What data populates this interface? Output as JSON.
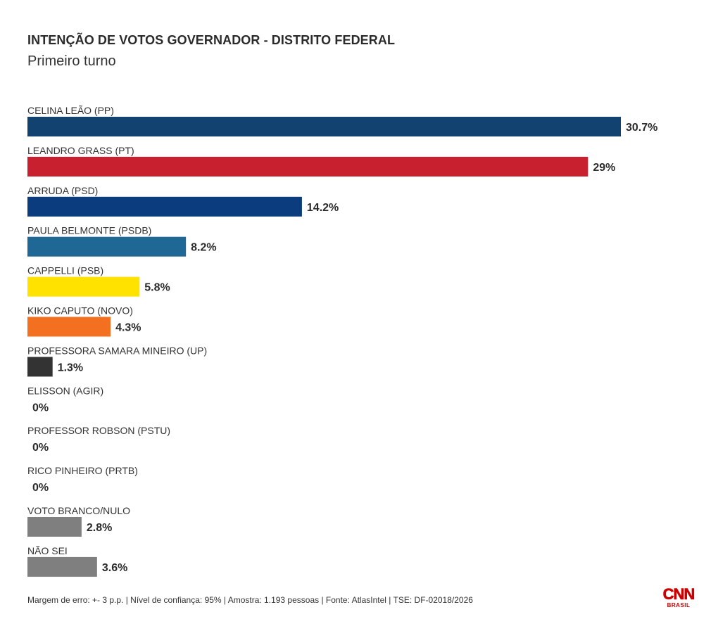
{
  "header": {
    "title": "INTENÇÃO DE VOTOS GOVERNADOR - DISTRITO FEDERAL",
    "subtitle": "Primeiro turno"
  },
  "chart_data": {
    "type": "bar",
    "orientation": "horizontal",
    "title": "INTENÇÃO DE VOTOS GOVERNADOR - DISTRITO FEDERAL",
    "subtitle": "Primeiro turno",
    "unit": "%",
    "categories": [
      "CELINA LEÃO (PP)",
      "LEANDRO GRASS (PT)",
      "ARRUDA (PSD)",
      "PAULA BELMONTE (PSDB)",
      "CAPPELLI (PSB)",
      "KIKO CAPUTO (NOVO)",
      "PROFESSORA SAMARA MINEIRO (UP)",
      "ELISSON (AGIR)",
      "PROFESSOR ROBSON (PSTU)",
      "RICO PINHEIRO (PRTB)",
      "VOTO BRANCO/NULO",
      "NÃO SEI"
    ],
    "values": [
      30.7,
      29,
      14.2,
      8.2,
      5.8,
      4.3,
      1.3,
      0,
      0,
      0,
      2.8,
      3.6
    ],
    "value_labels": [
      "30.7%",
      "29%",
      "14.2%",
      "8.2%",
      "5.8%",
      "4.3%",
      "1.3%",
      "0%",
      "0%",
      "0%",
      "2.8%",
      "3.6%"
    ],
    "colors": [
      "#12426f",
      "#c8202f",
      "#0b3c7e",
      "#1f6895",
      "#ffe200",
      "#f37021",
      "#333333",
      "#333333",
      "#333333",
      "#333333",
      "#7f7f7f",
      "#7f7f7f"
    ],
    "xlim": [
      0,
      30.7
    ],
    "grid": false,
    "legend": "none"
  },
  "footer": {
    "note": "Margem de erro: +- 3 p.p. | Nível de confiança: 95% | Amostra: 1.193 pessoas | Fonte: AtlasIntel | TSE: DF-02018/2026",
    "logo_text": "CNN",
    "logo_sub": "BRASIL"
  }
}
